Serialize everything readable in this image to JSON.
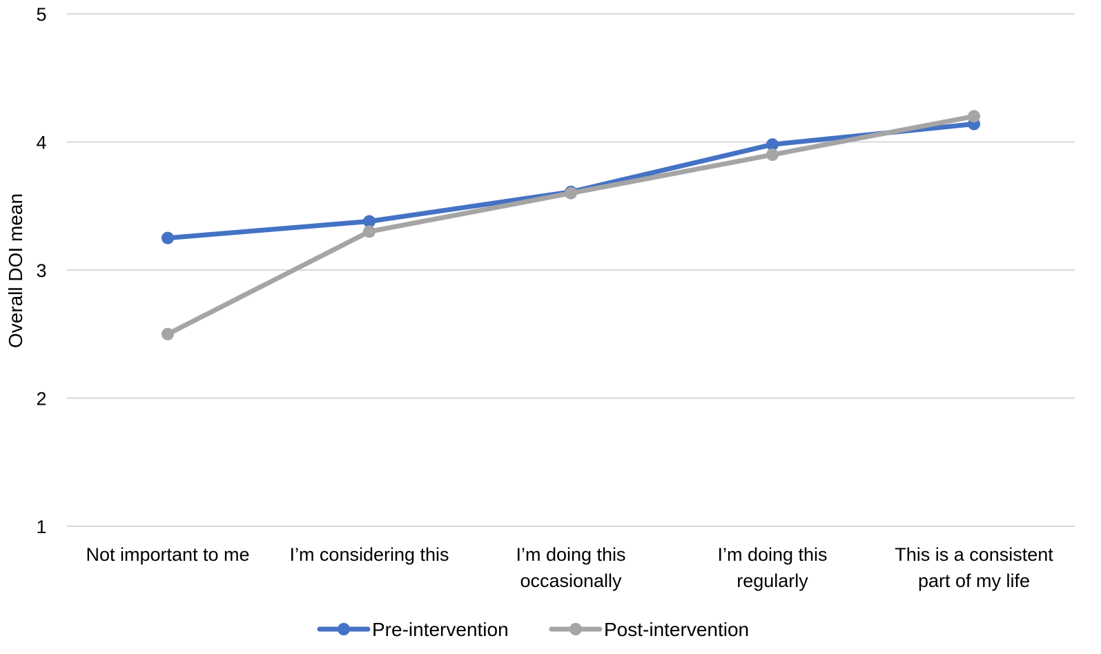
{
  "chart_data": {
    "type": "line",
    "title": "",
    "xlabel": "",
    "ylabel": "Overall DOI mean",
    "ylim": [
      1,
      5
    ],
    "yticks": [
      1,
      2,
      3,
      4,
      5
    ],
    "grid": true,
    "legend_position": "bottom",
    "categories": [
      [
        "Not important to me"
      ],
      [
        "I’m considering this"
      ],
      [
        "I’m doing this",
        "occasionally"
      ],
      [
        "I’m doing this",
        "regularly"
      ],
      [
        "This is a consistent",
        "part of my life"
      ]
    ],
    "series": [
      {
        "name": "Pre-intervention",
        "color": "#4472c4",
        "values": [
          3.25,
          3.38,
          3.61,
          3.98,
          4.14
        ]
      },
      {
        "name": "Post-intervention",
        "color": "#a5a5a5",
        "values": [
          2.5,
          3.3,
          3.6,
          3.9,
          4.2
        ]
      }
    ]
  }
}
